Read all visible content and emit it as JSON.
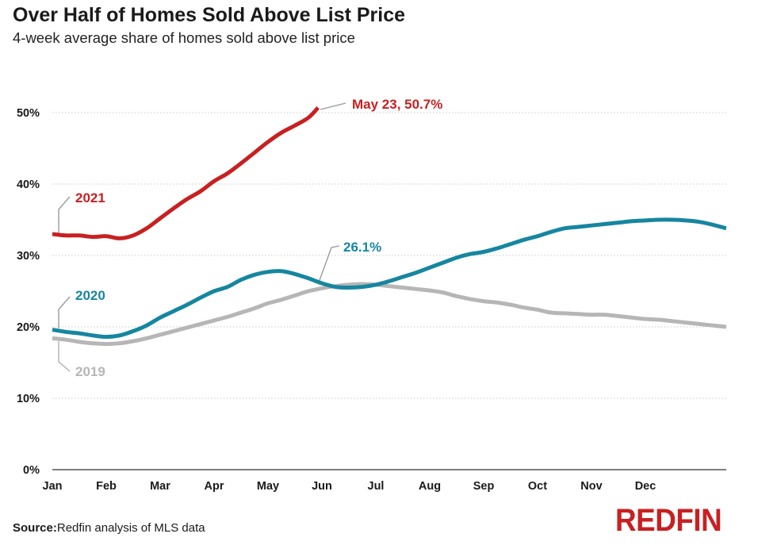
{
  "header": {
    "title": "Over Half of Homes Sold Above List Price",
    "subtitle": "4-week average share of homes sold above list price"
  },
  "footer": {
    "source_label": "Source:",
    "source_text": "Redfin analysis of MLS data",
    "logo_text": "REDFIN"
  },
  "colors": {
    "brand": "#c82021",
    "series_2021": "#c82021",
    "series_2020": "#1686a0",
    "series_2019": "#b6b6b6",
    "grid": "#c8c8c8",
    "axis": "#333333"
  },
  "chart_data": {
    "type": "line",
    "title": "Over Half of Homes Sold Above List Price",
    "subtitle": "4-week average share of homes sold above list price",
    "xlabel": "",
    "ylabel": "",
    "x_unit": "month",
    "xlim": [
      0,
      12
    ],
    "ylim": [
      0,
      50
    ],
    "x_tick_labels": [
      "Jan",
      "Feb",
      "Mar",
      "Apr",
      "May",
      "Jun",
      "Jul",
      "Aug",
      "Sep",
      "Oct",
      "Nov",
      "Dec"
    ],
    "y_ticks": [
      0,
      10,
      20,
      30,
      40,
      50
    ],
    "y_tick_labels": [
      "0%",
      "10%",
      "20%",
      "30%",
      "40%",
      "50%"
    ],
    "grid": "horizontal dotted",
    "legend": "inline labels",
    "series": [
      {
        "name": "2021",
        "color": "#c82021",
        "points": [
          [
            0,
            33.0
          ],
          [
            0.25,
            32.8
          ],
          [
            0.5,
            32.8
          ],
          [
            0.75,
            32.6
          ],
          [
            1.0,
            32.7
          ],
          [
            1.25,
            32.4
          ],
          [
            1.5,
            32.8
          ],
          [
            1.75,
            33.8
          ],
          [
            2.0,
            35.2
          ],
          [
            2.25,
            36.6
          ],
          [
            2.5,
            37.9
          ],
          [
            2.75,
            39.0
          ],
          [
            3.0,
            40.4
          ],
          [
            3.25,
            41.5
          ],
          [
            3.5,
            42.9
          ],
          [
            3.75,
            44.4
          ],
          [
            4.0,
            45.9
          ],
          [
            4.25,
            47.2
          ],
          [
            4.5,
            48.2
          ],
          [
            4.75,
            49.3
          ],
          [
            4.93,
            50.7
          ]
        ]
      },
      {
        "name": "2020",
        "color": "#1686a0",
        "points": [
          [
            0,
            19.6
          ],
          [
            0.25,
            19.3
          ],
          [
            0.5,
            19.1
          ],
          [
            0.75,
            18.8
          ],
          [
            1.0,
            18.6
          ],
          [
            1.25,
            18.8
          ],
          [
            1.5,
            19.4
          ],
          [
            1.75,
            20.2
          ],
          [
            2.0,
            21.3
          ],
          [
            2.25,
            22.2
          ],
          [
            2.5,
            23.1
          ],
          [
            2.75,
            24.1
          ],
          [
            3.0,
            25.0
          ],
          [
            3.25,
            25.6
          ],
          [
            3.5,
            26.6
          ],
          [
            3.75,
            27.3
          ],
          [
            4.0,
            27.7
          ],
          [
            4.25,
            27.8
          ],
          [
            4.5,
            27.4
          ],
          [
            4.75,
            26.8
          ],
          [
            5.0,
            26.1
          ],
          [
            5.25,
            25.6
          ],
          [
            5.5,
            25.5
          ],
          [
            5.75,
            25.6
          ],
          [
            6.0,
            25.9
          ],
          [
            6.25,
            26.4
          ],
          [
            6.5,
            27.0
          ],
          [
            6.75,
            27.6
          ],
          [
            7.0,
            28.3
          ],
          [
            7.25,
            29.0
          ],
          [
            7.5,
            29.7
          ],
          [
            7.75,
            30.2
          ],
          [
            8.0,
            30.5
          ],
          [
            8.25,
            31.0
          ],
          [
            8.5,
            31.6
          ],
          [
            8.75,
            32.2
          ],
          [
            9.0,
            32.7
          ],
          [
            9.25,
            33.3
          ],
          [
            9.5,
            33.8
          ],
          [
            9.75,
            34.0
          ],
          [
            10.0,
            34.2
          ],
          [
            10.25,
            34.4
          ],
          [
            10.5,
            34.6
          ],
          [
            10.75,
            34.8
          ],
          [
            11.0,
            34.9
          ],
          [
            11.25,
            35.0
          ],
          [
            11.5,
            35.0
          ],
          [
            11.75,
            34.9
          ],
          [
            12.0,
            34.7
          ],
          [
            12.25,
            34.3
          ],
          [
            12.5,
            33.8
          ]
        ]
      },
      {
        "name": "2019",
        "color": "#b6b6b6",
        "points": [
          [
            0,
            18.4
          ],
          [
            0.25,
            18.2
          ],
          [
            0.5,
            17.9
          ],
          [
            0.75,
            17.7
          ],
          [
            1.0,
            17.6
          ],
          [
            1.25,
            17.7
          ],
          [
            1.5,
            18.0
          ],
          [
            1.75,
            18.4
          ],
          [
            2.0,
            18.9
          ],
          [
            2.25,
            19.4
          ],
          [
            2.5,
            19.9
          ],
          [
            2.75,
            20.4
          ],
          [
            3.0,
            20.9
          ],
          [
            3.25,
            21.4
          ],
          [
            3.5,
            22.0
          ],
          [
            3.75,
            22.6
          ],
          [
            4.0,
            23.3
          ],
          [
            4.25,
            23.8
          ],
          [
            4.5,
            24.4
          ],
          [
            4.75,
            25.0
          ],
          [
            5.0,
            25.4
          ],
          [
            5.25,
            25.7
          ],
          [
            5.5,
            25.9
          ],
          [
            5.75,
            26.0
          ],
          [
            6.0,
            25.9
          ],
          [
            6.25,
            25.7
          ],
          [
            6.5,
            25.5
          ],
          [
            6.75,
            25.3
          ],
          [
            7.0,
            25.1
          ],
          [
            7.25,
            24.8
          ],
          [
            7.5,
            24.3
          ],
          [
            7.75,
            23.9
          ],
          [
            8.0,
            23.6
          ],
          [
            8.25,
            23.4
          ],
          [
            8.5,
            23.1
          ],
          [
            8.75,
            22.7
          ],
          [
            9.0,
            22.4
          ],
          [
            9.25,
            22.0
          ],
          [
            9.5,
            21.9
          ],
          [
            9.75,
            21.8
          ],
          [
            10.0,
            21.7
          ],
          [
            10.25,
            21.7
          ],
          [
            10.5,
            21.5
          ],
          [
            10.75,
            21.3
          ],
          [
            11.0,
            21.1
          ],
          [
            11.25,
            21.0
          ],
          [
            11.5,
            20.8
          ],
          [
            11.75,
            20.6
          ],
          [
            12.0,
            20.4
          ],
          [
            12.25,
            20.2
          ],
          [
            12.5,
            20.0
          ]
        ]
      }
    ],
    "annotations": [
      {
        "text": "May 23, 50.7%",
        "series": "2021",
        "x": 4.93,
        "y": 50.7,
        "color": "#c82021"
      },
      {
        "text": "2021",
        "series": "2021",
        "x": 0,
        "y": 33.0,
        "color": "#c82021"
      },
      {
        "text": "26.1%",
        "series": "2020",
        "x": 5.0,
        "y": 26.1,
        "color": "#1686a0"
      },
      {
        "text": "2020",
        "series": "2020",
        "x": 0,
        "y": 19.6,
        "color": "#1686a0"
      },
      {
        "text": "2019",
        "series": "2019",
        "x": 0,
        "y": 18.4,
        "color": "#b6b6b6"
      }
    ]
  }
}
